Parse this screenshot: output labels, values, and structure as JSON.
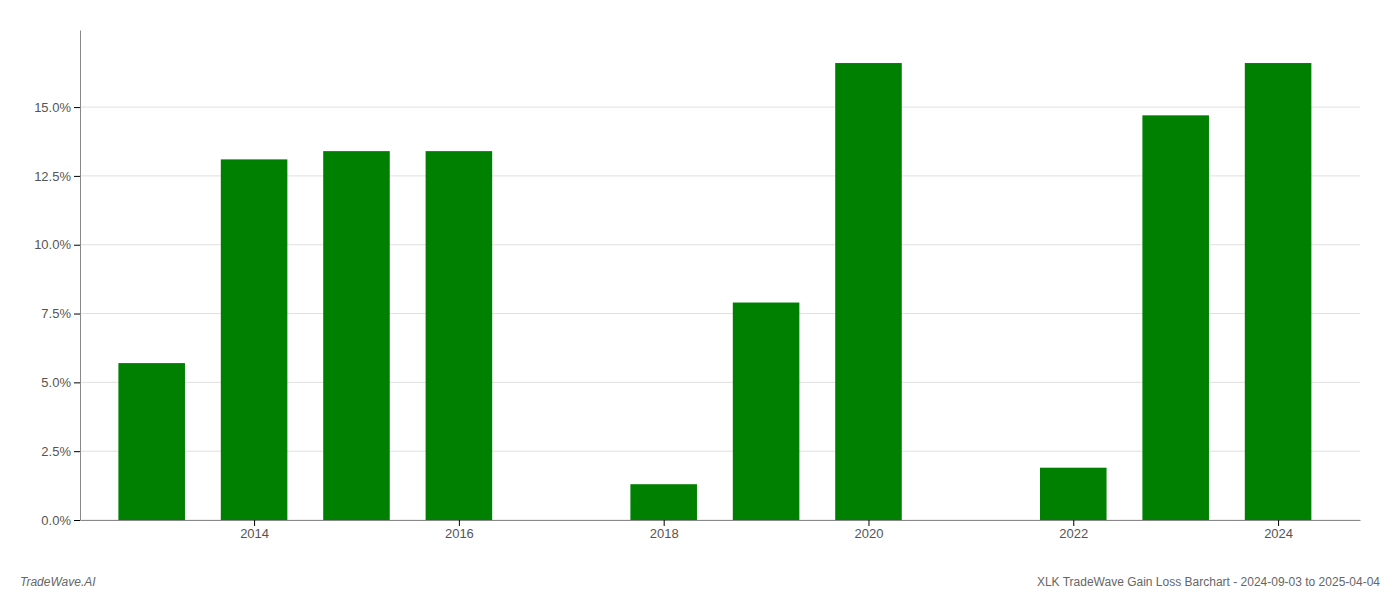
{
  "chart_data": {
    "type": "bar",
    "x": [
      2013,
      2014,
      2015,
      2016,
      2017,
      2018,
      2019,
      2020,
      2021,
      2022,
      2023,
      2024
    ],
    "values": [
      0.057,
      0.131,
      0.134,
      0.134,
      0.0,
      0.013,
      0.079,
      0.166,
      0.0,
      0.019,
      0.147,
      0.166
    ],
    "color": "#008000",
    "xlim": [
      2012.3,
      2024.8
    ],
    "xticks": [
      2014,
      2016,
      2018,
      2020,
      2022,
      2024
    ],
    "ylim": [
      0,
      0.178
    ],
    "yticks": [
      {
        "value": 0.0,
        "label": "0.0%"
      },
      {
        "value": 0.025,
        "label": "2.5%"
      },
      {
        "value": 0.05,
        "label": "5.0%"
      },
      {
        "value": 0.075,
        "label": "7.5%"
      },
      {
        "value": 0.1,
        "label": "10.0%"
      },
      {
        "value": 0.125,
        "label": "12.5%"
      },
      {
        "value": 0.15,
        "label": "15.0%"
      }
    ],
    "grid": true,
    "annotations": [
      "TradeWave.AI",
      "XLK TradeWave Gain Loss Barchart - 2024-09-03 to 2025-04-04"
    ]
  }
}
